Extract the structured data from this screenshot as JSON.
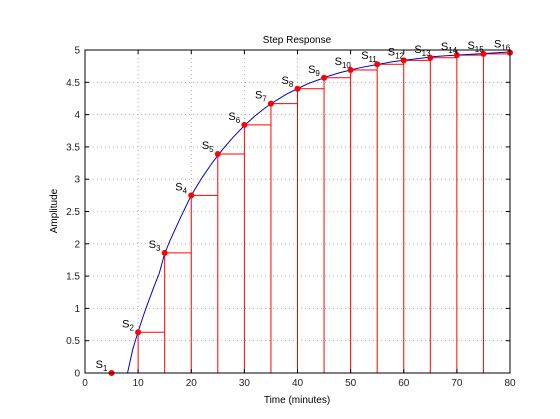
{
  "chart_data": {
    "type": "line",
    "title": "Step Response",
    "xlabel": "Time (minutes)",
    "ylabel": "Amplitude",
    "xlim": [
      0,
      80
    ],
    "ylim": [
      0,
      5
    ],
    "xticks": [
      "0",
      "10",
      "20",
      "30",
      "40",
      "50",
      "60",
      "70",
      "80"
    ],
    "yticks": [
      "0",
      "0.5",
      "1",
      "1.5",
      "2",
      "2.5",
      "3",
      "3.5",
      "4",
      "4.5",
      "5"
    ],
    "grid": true,
    "colors": {
      "response": "#0000cc",
      "samples": "#ff0000",
      "axes": "#000000",
      "grid": "#888888"
    },
    "series": [
      {
        "type": "line",
        "x": [
          0,
          8,
          9,
          10,
          11,
          12,
          13,
          14,
          15,
          16,
          17,
          18,
          19,
          20,
          22,
          24,
          26,
          28,
          30,
          32,
          34,
          36,
          38,
          40,
          42,
          44,
          46,
          48,
          50,
          52,
          54,
          56,
          58,
          60,
          62,
          64,
          66,
          68,
          70,
          72,
          74,
          76,
          78,
          80
        ],
        "y": [
          0,
          0,
          0.37,
          0.64,
          0.89,
          1.12,
          1.34,
          1.55,
          1.85,
          2.05,
          2.23,
          2.41,
          2.58,
          2.75,
          3.02,
          3.26,
          3.47,
          3.66,
          3.83,
          3.98,
          4.11,
          4.22,
          4.32,
          4.4,
          4.48,
          4.54,
          4.6,
          4.65,
          4.69,
          4.73,
          4.76,
          4.79,
          4.82,
          4.84,
          4.86,
          4.88,
          4.9,
          4.91,
          4.92,
          4.93,
          4.94,
          4.95,
          4.96,
          4.97
        ]
      },
      {
        "type": "samples",
        "labels": [
          "S1",
          "S2",
          "S3",
          "S4",
          "S5",
          "S6",
          "S7",
          "S8",
          "S9",
          "S10",
          "S11",
          "S12",
          "S13",
          "S14",
          "S15",
          "S16"
        ],
        "x": [
          5,
          10,
          15,
          20,
          25,
          30,
          35,
          40,
          45,
          50,
          55,
          60,
          65,
          70,
          75,
          80
        ],
        "y": [
          0,
          0.63,
          1.86,
          2.75,
          3.39,
          3.84,
          4.17,
          4.4,
          4.57,
          4.69,
          4.78,
          4.84,
          4.88,
          4.92,
          4.94,
          4.96
        ]
      }
    ]
  }
}
